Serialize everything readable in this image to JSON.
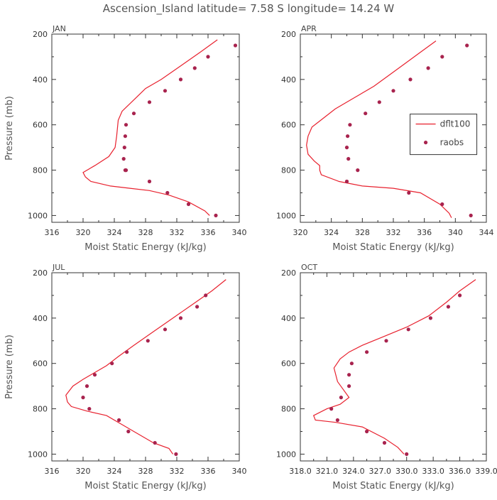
{
  "figure_title": "Ascension_Island  latitude= 7.58 S longitude= 14.24 W",
  "colors": {
    "model": "#e8212e",
    "obs": "#a8234e",
    "axis": "#333333",
    "text": "#444444"
  },
  "chart_data": [
    {
      "type": "line",
      "panel": "JAN",
      "title": "JAN",
      "xlabel": "Moist Static Energy (kJ/kg)",
      "ylabel": "Pressure (mb)",
      "xlim": [
        316,
        340
      ],
      "ylim": [
        200,
        1030
      ],
      "y_inverted": true,
      "xticks": [
        316,
        320,
        324,
        328,
        332,
        336,
        340
      ],
      "xtick_labels": [
        "316",
        "320",
        "324",
        "328",
        "332",
        "336",
        "340"
      ],
      "yticks": [
        200,
        400,
        600,
        800,
        1000
      ],
      "ytick_labels": [
        "200",
        "400",
        "600",
        "800",
        "1000"
      ],
      "series": [
        {
          "name": "dflt100",
          "kind": "line",
          "x": [
            337.2,
            335.0,
            332.5,
            330.0,
            328.0,
            326.8,
            325.0,
            324.5,
            324.3,
            324.1,
            323.3,
            321.5,
            320.0,
            320.3,
            321.0,
            323.5,
            326.0,
            328.5,
            331.0,
            333.5,
            335.6,
            336.2
          ],
          "y": [
            225,
            280,
            340,
            400,
            440,
            480,
            540,
            580,
            650,
            700,
            740,
            780,
            810,
            830,
            850,
            870,
            880,
            890,
            910,
            940,
            980,
            1000
          ]
        },
        {
          "name": "raobs",
          "kind": "points",
          "x": [
            339.5,
            336.0,
            334.3,
            332.5,
            330.5,
            328.5,
            326.5,
            325.5,
            325.4,
            325.3,
            325.2,
            325.5,
            325.4,
            328.5,
            330.8,
            333.5,
            337.0
          ],
          "y": [
            250,
            300,
            350,
            400,
            450,
            500,
            550,
            600,
            650,
            700,
            750,
            800,
            800,
            850,
            900,
            950,
            1000
          ]
        }
      ]
    },
    {
      "type": "line",
      "panel": "APR",
      "title": "APR",
      "xlabel": "Moist Static Energy (kJ/kg)",
      "ylabel": "",
      "xlim": [
        320,
        344
      ],
      "ylim": [
        200,
        1030
      ],
      "y_inverted": true,
      "xticks": [
        320,
        324,
        328,
        332,
        336,
        340,
        344
      ],
      "xtick_labels": [
        "320",
        "324",
        "328",
        "332",
        "336",
        "340",
        "344"
      ],
      "yticks": [
        200,
        400,
        600,
        800,
        1000
      ],
      "ytick_labels": [
        "200",
        "400",
        "600",
        "800",
        "1000"
      ],
      "legend": {
        "position": "center-right",
        "entries": [
          "dflt100",
          "raobs"
        ]
      },
      "series": [
        {
          "name": "dflt100",
          "kind": "line",
          "x": [
            337.5,
            335.5,
            333.5,
            331.5,
            329.5,
            327.0,
            324.5,
            323.0,
            321.5,
            321.0,
            320.8,
            321.0,
            321.8,
            322.5,
            322.5,
            322.7,
            325.0,
            328.0,
            332.0,
            335.5,
            338.0,
            339.2,
            339.5
          ],
          "y": [
            230,
            280,
            330,
            380,
            430,
            480,
            530,
            570,
            610,
            650,
            690,
            730,
            760,
            780,
            800,
            820,
            850,
            870,
            880,
            900,
            950,
            990,
            1010
          ]
        },
        {
          "name": "raobs",
          "kind": "points",
          "x": [
            341.5,
            338.3,
            336.5,
            334.2,
            332.0,
            330.2,
            328.4,
            326.4,
            326.1,
            326.0,
            326.2,
            327.4,
            326.0,
            334.0,
            338.3,
            342.0
          ],
          "y": [
            250,
            300,
            350,
            400,
            450,
            500,
            550,
            600,
            650,
            700,
            750,
            800,
            850,
            900,
            950,
            1000
          ]
        }
      ]
    },
    {
      "type": "line",
      "panel": "JUL",
      "title": "JUL",
      "xlabel": "Moist Static Energy (kJ/kg)",
      "ylabel": "Pressure (mb)",
      "xlim": [
        316,
        340
      ],
      "ylim": [
        200,
        1030
      ],
      "y_inverted": true,
      "xticks": [
        316,
        320,
        324,
        328,
        332,
        336,
        340
      ],
      "xtick_labels": [
        "316",
        "320",
        "324",
        "328",
        "332",
        "336",
        "340"
      ],
      "yticks": [
        200,
        400,
        600,
        800,
        1000
      ],
      "ytick_labels": [
        "200",
        "400",
        "600",
        "800",
        "1000"
      ],
      "series": [
        {
          "name": "dflt100",
          "kind": "line",
          "x": [
            338.3,
            336.5,
            334.0,
            331.5,
            329.0,
            326.5,
            324.5,
            323.0,
            321.5,
            320.0,
            318.7,
            317.8,
            318.0,
            318.5,
            320.5,
            323.0,
            325.0,
            326.5,
            329.0,
            331.0,
            331.5
          ],
          "y": [
            230,
            280,
            340,
            400,
            460,
            520,
            570,
            610,
            640,
            670,
            700,
            740,
            770,
            790,
            810,
            830,
            870,
            900,
            950,
            975,
            1000
          ]
        },
        {
          "name": "raobs",
          "kind": "points",
          "x": [
            335.7,
            334.6,
            332.5,
            330.5,
            328.3,
            325.6,
            323.7,
            321.5,
            320.5,
            320.0,
            320.8,
            324.6,
            325.8,
            329.2,
            331.9
          ],
          "y": [
            300,
            350,
            400,
            450,
            500,
            550,
            600,
            650,
            700,
            750,
            800,
            850,
            900,
            950,
            1000
          ]
        }
      ]
    },
    {
      "type": "line",
      "panel": "OCT",
      "title": "OCT",
      "xlabel": "Moist Static Energy (kJ/kg)",
      "ylabel": "",
      "xlim": [
        318.0,
        339.0
      ],
      "ylim": [
        200,
        1030
      ],
      "y_inverted": true,
      "xticks": [
        318.0,
        321.0,
        324.0,
        327.0,
        330.0,
        333.0,
        336.0,
        339.0
      ],
      "xtick_labels": [
        "318.0",
        "321.0",
        "324.0",
        "327.0",
        "330.0",
        "333.0",
        "336.0",
        "339.0"
      ],
      "yticks": [
        200,
        400,
        600,
        800,
        1000
      ],
      "ytick_labels": [
        "200",
        "400",
        "600",
        "800",
        "1000"
      ],
      "series": [
        {
          "name": "dflt100",
          "kind": "line",
          "x": [
            337.8,
            336.0,
            334.5,
            332.5,
            330.0,
            327.5,
            325.0,
            323.5,
            322.5,
            321.8,
            322.2,
            323.5,
            322.5,
            321.0,
            319.5,
            319.7,
            322.0,
            325.0,
            327.5,
            329.0,
            329.7
          ],
          "y": [
            230,
            280,
            330,
            390,
            440,
            480,
            520,
            550,
            580,
            620,
            680,
            750,
            780,
            800,
            830,
            850,
            860,
            880,
            930,
            970,
            1000
          ]
        },
        {
          "name": "raobs",
          "kind": "points",
          "x": [
            336.0,
            334.7,
            332.7,
            330.2,
            327.7,
            325.5,
            323.8,
            323.5,
            323.5,
            322.6,
            321.5,
            322.2,
            325.5,
            327.5,
            330.0
          ],
          "y": [
            300,
            350,
            400,
            450,
            500,
            550,
            600,
            650,
            700,
            750,
            800,
            850,
            900,
            950,
            1000
          ]
        }
      ]
    }
  ]
}
